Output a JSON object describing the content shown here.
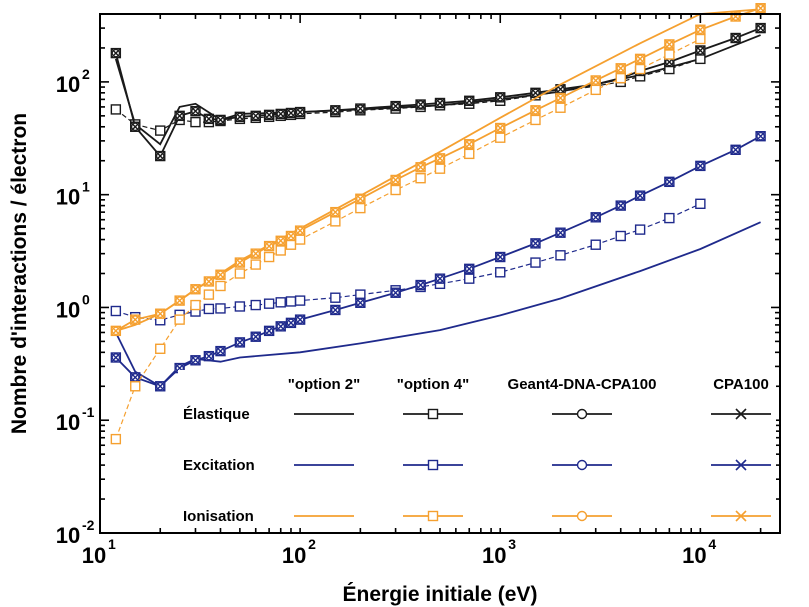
{
  "chart_data": {
    "type": "line",
    "xlabel": "Énergie initiale (eV)",
    "ylabel": "Nombre d'interactions / électron",
    "xscale": "log",
    "yscale": "log",
    "xlim": [
      10,
      25000
    ],
    "ylim": [
      0.01,
      400
    ],
    "x_ticks": [
      {
        "base": "10",
        "exp": "1",
        "value": 10
      },
      {
        "base": "10",
        "exp": "2",
        "value": 100
      },
      {
        "base": "10",
        "exp": "3",
        "value": 1000
      },
      {
        "base": "10",
        "exp": "4",
        "value": 10000
      }
    ],
    "y_ticks": [
      {
        "base": "10",
        "exp": "-2",
        "value": 0.01
      },
      {
        "base": "10",
        "exp": "-1",
        "value": 0.1
      },
      {
        "base": "10",
        "exp": "0",
        "value": 1
      },
      {
        "base": "10",
        "exp": "1",
        "value": 10
      },
      {
        "base": "10",
        "exp": "2",
        "value": 100
      }
    ],
    "legend": {
      "placement": "bottom-right",
      "columns": [
        "\"option 2\"",
        "\"option 4\"",
        "Geant4-DNA-CPA100",
        "CPA100"
      ],
      "rows": [
        "Élastique",
        "Excitation",
        "Ionisation"
      ]
    },
    "colors": {
      "elastique": "#1a1a1a",
      "excitation": "#1f2a8c",
      "ionisation": "#f5a030"
    },
    "series": [
      {
        "process": "elastique",
        "model": "option2",
        "x": [
          12,
          15,
          20,
          25,
          30,
          40,
          50,
          100,
          200,
          500,
          1000,
          2000,
          5000,
          10000,
          20000
        ],
        "y": [
          160,
          42,
          28,
          60,
          64,
          46,
          52,
          54,
          57,
          62,
          70,
          82,
          115,
          160,
          260
        ]
      },
      {
        "process": "elastique",
        "model": "option4",
        "x": [
          12,
          15,
          20,
          25,
          30,
          35,
          40,
          50,
          60,
          70,
          80,
          90,
          100,
          150,
          200,
          300,
          400,
          500,
          700,
          1000,
          1500,
          2000,
          3000,
          4000,
          5000,
          7000,
          10000
        ],
        "y": [
          57,
          42,
          37,
          46,
          44,
          44,
          45,
          47,
          48,
          49,
          50,
          51,
          52,
          54,
          56,
          58,
          60,
          62,
          64,
          68,
          76,
          82,
          92,
          100,
          112,
          130,
          160
        ]
      },
      {
        "process": "elastique",
        "model": "cpa100",
        "x": [
          12,
          15,
          20,
          25,
          30,
          35,
          40,
          50,
          60,
          70,
          80,
          90,
          100,
          150,
          200,
          300,
          400,
          500,
          700,
          1000,
          1500,
          2000,
          3000,
          4000,
          5000,
          7000,
          10000,
          15000,
          20000
        ],
        "y": [
          180,
          40,
          22,
          50,
          55,
          47,
          46,
          49,
          50,
          51,
          52,
          53,
          54,
          56,
          58,
          61,
          63,
          65,
          68,
          73,
          80,
          86,
          95,
          108,
          125,
          150,
          190,
          245,
          300
        ]
      },
      {
        "process": "excitation",
        "model": "option2",
        "x": [
          12,
          15,
          20,
          25,
          30,
          40,
          50,
          100,
          200,
          500,
          1000,
          2000,
          5000,
          10000,
          20000
        ],
        "y": [
          0.6,
          0.27,
          0.2,
          0.3,
          0.35,
          0.33,
          0.36,
          0.4,
          0.48,
          0.63,
          0.85,
          1.2,
          2.1,
          3.3,
          5.7
        ]
      },
      {
        "process": "excitation",
        "model": "option4",
        "x": [
          12,
          15,
          20,
          25,
          30,
          35,
          40,
          50,
          60,
          70,
          80,
          90,
          100,
          150,
          200,
          300,
          400,
          500,
          700,
          1000,
          1500,
          2000,
          3000,
          4000,
          5000,
          7000,
          10000
        ],
        "y": [
          0.93,
          0.82,
          0.77,
          0.86,
          0.92,
          0.97,
          0.98,
          1.02,
          1.05,
          1.08,
          1.11,
          1.13,
          1.15,
          1.22,
          1.3,
          1.42,
          1.52,
          1.62,
          1.8,
          2.05,
          2.5,
          2.9,
          3.6,
          4.3,
          4.9,
          6.2,
          8.3
        ]
      },
      {
        "process": "excitation",
        "model": "cpa100",
        "x": [
          12,
          15,
          20,
          25,
          30,
          35,
          40,
          50,
          60,
          70,
          80,
          90,
          100,
          150,
          200,
          300,
          400,
          500,
          700,
          1000,
          1500,
          2000,
          3000,
          4000,
          5000,
          7000,
          10000,
          15000,
          20000
        ],
        "y": [
          0.36,
          0.24,
          0.2,
          0.29,
          0.34,
          0.37,
          0.41,
          0.49,
          0.55,
          0.62,
          0.68,
          0.73,
          0.78,
          0.95,
          1.1,
          1.35,
          1.58,
          1.8,
          2.2,
          2.8,
          3.7,
          4.6,
          6.3,
          8.0,
          9.8,
          13.0,
          18.0,
          25.0,
          33.0
        ]
      },
      {
        "process": "ionisation",
        "model": "option2",
        "x": [
          12,
          15,
          20,
          25,
          30,
          40,
          50,
          100,
          200,
          500,
          1000,
          2000,
          5000,
          10000,
          20000
        ],
        "y": [
          0.62,
          0.7,
          0.88,
          1.15,
          1.45,
          2.0,
          2.6,
          5.0,
          9.8,
          24,
          48,
          95,
          220,
          400,
          440
        ]
      },
      {
        "process": "ionisation",
        "model": "option4",
        "x": [
          12,
          15,
          20,
          25,
          30,
          35,
          40,
          50,
          60,
          70,
          80,
          90,
          100,
          150,
          200,
          300,
          400,
          500,
          700,
          1000,
          1500,
          2000,
          3000,
          4000,
          5000,
          7000,
          10000
        ],
        "y": [
          0.068,
          0.2,
          0.43,
          0.78,
          1.05,
          1.3,
          1.55,
          2.0,
          2.4,
          2.8,
          3.2,
          3.6,
          4.0,
          5.8,
          7.6,
          11,
          14,
          17,
          23,
          32,
          46,
          59,
          85,
          108,
          130,
          175,
          240
        ]
      },
      {
        "process": "ionisation",
        "model": "cpa100",
        "x": [
          12,
          15,
          20,
          25,
          30,
          35,
          40,
          50,
          60,
          70,
          80,
          90,
          100,
          150,
          200,
          300,
          400,
          500,
          700,
          1000,
          1500,
          2000,
          3000,
          4000,
          5000,
          7000,
          10000,
          15000,
          20000
        ],
        "y": [
          0.62,
          0.78,
          0.88,
          1.15,
          1.45,
          1.7,
          1.95,
          2.5,
          3.0,
          3.5,
          3.9,
          4.3,
          4.8,
          7.0,
          9.2,
          13.5,
          17.5,
          21,
          28,
          39,
          56,
          72,
          103,
          132,
          160,
          215,
          290,
          380,
          450
        ]
      }
    ]
  }
}
